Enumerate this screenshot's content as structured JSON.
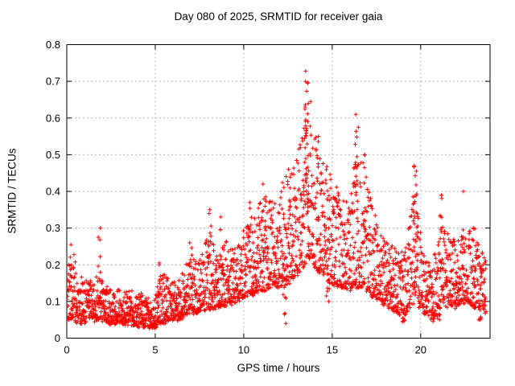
{
  "page": {
    "background": "#ffffff"
  },
  "chart_data": {
    "type": "scatter",
    "title": "Day 080 of 2025, SRMTID for receiver gaia",
    "xlabel": "GPS time / hours",
    "ylabel": "SRMTID / TECUs",
    "xlim": [
      0,
      23.92
    ],
    "ylim": [
      0,
      0.8
    ],
    "xticks": {
      "values": [
        0,
        5,
        10,
        15,
        20
      ],
      "labels": [
        "0",
        "5",
        "10",
        "15",
        "20"
      ]
    },
    "yticks": {
      "values": [
        0,
        0.1,
        0.2,
        0.3,
        0.4,
        0.5,
        0.6,
        0.7,
        0.8
      ],
      "labels": [
        "0",
        "0.1",
        "0.2",
        "0.3",
        "0.4",
        "0.5",
        "0.6",
        "0.7",
        "0.8"
      ]
    },
    "grid": true,
    "marker": {
      "shape": "plus",
      "color": "#ff0000",
      "size": 5
    },
    "grid_color": "#b4b4b4",
    "axis_color": "#000000",
    "peak": {
      "hour": 13.55,
      "value": 0.728
    },
    "data_end_hour": 23.7,
    "points_per_hour": 118,
    "seed": 42,
    "band_envelope": {
      "note": "dense scatter band read from pixels: [hour, low TECU, high TECU]",
      "keyframes": [
        [
          0.0,
          0.05,
          0.2
        ],
        [
          0.35,
          0.05,
          0.24
        ],
        [
          0.7,
          0.04,
          0.17
        ],
        [
          1.2,
          0.05,
          0.15
        ],
        [
          1.85,
          0.05,
          0.17
        ],
        [
          2.3,
          0.04,
          0.14
        ],
        [
          3.2,
          0.04,
          0.13
        ],
        [
          4.2,
          0.035,
          0.12
        ],
        [
          4.9,
          0.03,
          0.1
        ],
        [
          5.3,
          0.04,
          0.18
        ],
        [
          5.8,
          0.05,
          0.16
        ],
        [
          6.3,
          0.05,
          0.15
        ],
        [
          6.9,
          0.07,
          0.24
        ],
        [
          7.5,
          0.07,
          0.21
        ],
        [
          8.1,
          0.08,
          0.3
        ],
        [
          8.6,
          0.08,
          0.22
        ],
        [
          9.0,
          0.09,
          0.27
        ],
        [
          9.6,
          0.1,
          0.24
        ],
        [
          10.0,
          0.11,
          0.3
        ],
        [
          10.6,
          0.12,
          0.34
        ],
        [
          11.15,
          0.13,
          0.4
        ],
        [
          11.7,
          0.14,
          0.38
        ],
        [
          12.2,
          0.14,
          0.43
        ],
        [
          12.8,
          0.16,
          0.47
        ],
        [
          13.3,
          0.19,
          0.55
        ],
        [
          13.6,
          0.21,
          0.7
        ],
        [
          13.95,
          0.2,
          0.6
        ],
        [
          14.4,
          0.17,
          0.5
        ],
        [
          14.9,
          0.15,
          0.46
        ],
        [
          15.4,
          0.14,
          0.41
        ],
        [
          15.9,
          0.13,
          0.36
        ],
        [
          16.3,
          0.14,
          0.55
        ],
        [
          16.7,
          0.14,
          0.48
        ],
        [
          17.1,
          0.12,
          0.4
        ],
        [
          17.7,
          0.1,
          0.3
        ],
        [
          18.3,
          0.08,
          0.26
        ],
        [
          18.9,
          0.06,
          0.23
        ],
        [
          19.3,
          0.07,
          0.3
        ],
        [
          19.7,
          0.1,
          0.44
        ],
        [
          20.1,
          0.07,
          0.24
        ],
        [
          20.7,
          0.05,
          0.2
        ],
        [
          21.15,
          0.08,
          0.34
        ],
        [
          21.6,
          0.09,
          0.28
        ],
        [
          22.0,
          0.08,
          0.26
        ],
        [
          22.4,
          0.1,
          0.34
        ],
        [
          22.8,
          0.09,
          0.29
        ],
        [
          23.2,
          0.08,
          0.27
        ],
        [
          23.7,
          0.07,
          0.21
        ]
      ]
    },
    "spikes": {
      "note": "narrow columns above the band: [hour, top value, n points]",
      "list": [
        [
          0.3,
          0.255,
          4
        ],
        [
          1.84,
          0.3,
          7
        ],
        [
          5.25,
          0.205,
          4
        ],
        [
          7.0,
          0.26,
          4
        ],
        [
          8.1,
          0.35,
          6
        ],
        [
          8.75,
          0.33,
          4
        ],
        [
          10.35,
          0.37,
          4
        ],
        [
          11.15,
          0.42,
          6
        ],
        [
          12.6,
          0.46,
          4
        ],
        [
          13.45,
          0.63,
          8
        ],
        [
          13.55,
          0.728,
          14
        ],
        [
          13.68,
          0.695,
          10
        ],
        [
          14.2,
          0.55,
          5
        ],
        [
          16.28,
          0.61,
          8
        ],
        [
          16.45,
          0.575,
          6
        ],
        [
          16.8,
          0.5,
          5
        ],
        [
          19.65,
          0.47,
          9
        ],
        [
          19.75,
          0.455,
          6
        ],
        [
          21.15,
          0.39,
          6
        ],
        [
          22.35,
          0.4,
          4
        ],
        [
          23.0,
          0.3,
          5
        ]
      ]
    },
    "dips": {
      "note": "low outliers below the band: [hour, bottom value, n points]",
      "list": [
        [
          4.95,
          0.028,
          6
        ],
        [
          12.3,
          0.04,
          6
        ],
        [
          14.75,
          0.1,
          5
        ],
        [
          19.0,
          0.045,
          6
        ],
        [
          21.0,
          0.05,
          5
        ],
        [
          23.35,
          0.05,
          5
        ]
      ]
    }
  }
}
